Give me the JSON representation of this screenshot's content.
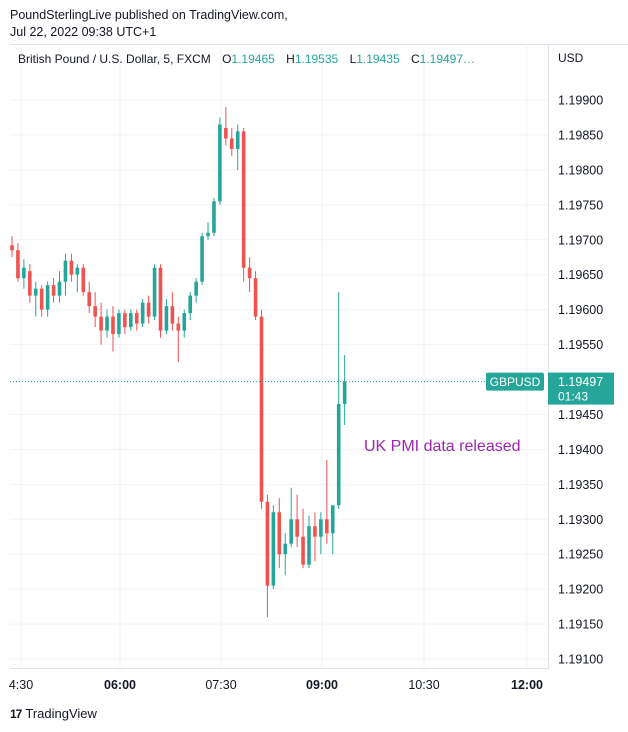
{
  "header": {
    "line1": "PoundSterlingLive published on TradingView.com,",
    "line2": "Jul 22, 2022 09:38 UTC+1"
  },
  "legend": {
    "symbol": "British Pound / U.S. Dollar, 5, FXCM",
    "o_label": "O",
    "o_value": "1.19465",
    "h_label": "H",
    "h_value": "1.19535",
    "l_label": "L",
    "l_value": "1.19435",
    "c_label": "C",
    "c_value": "1.19497…"
  },
  "currency": "USD",
  "footer": {
    "logo": "17",
    "brand": "TradingView"
  },
  "colors": {
    "up": "#26a69a",
    "down": "#ef5350",
    "annotation": "#9c27b0",
    "grid": "#f0f3fa"
  },
  "chart_data": {
    "type": "candlestick",
    "price_ticks": [
      "1.19900",
      "1.19850",
      "1.19800",
      "1.19750",
      "1.19700",
      "1.19650",
      "1.19600",
      "1.19550",
      "1.19500",
      "1.19450",
      "1.19400",
      "1.19350",
      "1.19300",
      "1.19250",
      "1.19200",
      "1.19150",
      "1.19100"
    ],
    "time_ticks": [
      {
        "label": "4:30",
        "bold": false
      },
      {
        "label": "06:00",
        "bold": true
      },
      {
        "label": "07:30",
        "bold": false
      },
      {
        "label": "09:00",
        "bold": true
      },
      {
        "label": "10:30",
        "bold": false
      },
      {
        "label": "12:00",
        "bold": true
      }
    ],
    "ylim": [
      1.19085,
      1.19945
    ],
    "last_price": {
      "symbol": "GBPUSD",
      "price": "1.19497",
      "countdown": "01:43",
      "value": 1.19497
    },
    "annotation": "UK PMI data released",
    "candles": [
      [
        1.19692,
        1.19705,
        1.19675,
        1.19685
      ],
      [
        1.19685,
        1.19695,
        1.1964,
        1.19645
      ],
      [
        1.19645,
        1.19672,
        1.1963,
        1.1966
      ],
      [
        1.19655,
        1.19665,
        1.1961,
        1.1962
      ],
      [
        1.1962,
        1.1964,
        1.1959,
        1.1963
      ],
      [
        1.1963,
        1.19635,
        1.1959,
        1.196
      ],
      [
        1.196,
        1.1964,
        1.1959,
        1.19635
      ],
      [
        1.19635,
        1.19645,
        1.1961,
        1.1962
      ],
      [
        1.1962,
        1.19655,
        1.1961,
        1.1964
      ],
      [
        1.1964,
        1.1968,
        1.1962,
        1.1967
      ],
      [
        1.1967,
        1.1968,
        1.1964,
        1.1965
      ],
      [
        1.1965,
        1.19665,
        1.19625,
        1.1966
      ],
      [
        1.1966,
        1.19665,
        1.1962,
        1.19625
      ],
      [
        1.19625,
        1.1964,
        1.19595,
        1.19605
      ],
      [
        1.19605,
        1.19625,
        1.19575,
        1.1959
      ],
      [
        1.1959,
        1.1961,
        1.1955,
        1.1957
      ],
      [
        1.1957,
        1.196,
        1.1956,
        1.1959
      ],
      [
        1.1959,
        1.19605,
        1.1954,
        1.19565
      ],
      [
        1.19565,
        1.196,
        1.1956,
        1.19595
      ],
      [
        1.19595,
        1.196,
        1.19565,
        1.19575
      ],
      [
        1.19575,
        1.196,
        1.1957,
        1.19595
      ],
      [
        1.19595,
        1.196,
        1.1957,
        1.1958
      ],
      [
        1.1958,
        1.19615,
        1.19575,
        1.1961
      ],
      [
        1.1961,
        1.1962,
        1.1958,
        1.1959
      ],
      [
        1.1959,
        1.19665,
        1.19585,
        1.1966
      ],
      [
        1.1966,
        1.19665,
        1.1956,
        1.1957
      ],
      [
        1.1957,
        1.19615,
        1.19565,
        1.19605
      ],
      [
        1.19605,
        1.19625,
        1.1957,
        1.1958
      ],
      [
        1.1958,
        1.1959,
        1.19525,
        1.1957
      ],
      [
        1.1957,
        1.196,
        1.1956,
        1.19595
      ],
      [
        1.19595,
        1.19625,
        1.19585,
        1.1962
      ],
      [
        1.1962,
        1.19645,
        1.1961,
        1.1964
      ],
      [
        1.1964,
        1.1971,
        1.19635,
        1.19705
      ],
      [
        1.19705,
        1.19725,
        1.197,
        1.1971
      ],
      [
        1.1971,
        1.1976,
        1.19705,
        1.19755
      ],
      [
        1.19755,
        1.19875,
        1.1975,
        1.19865
      ],
      [
        1.1986,
        1.1989,
        1.19835,
        1.19845
      ],
      [
        1.19845,
        1.1986,
        1.1982,
        1.1983
      ],
      [
        1.1983,
        1.19865,
        1.198,
        1.19855
      ],
      [
        1.19855,
        1.1986,
        1.1964,
        1.1966
      ],
      [
        1.1966,
        1.19675,
        1.19625,
        1.19645
      ],
      [
        1.19645,
        1.19655,
        1.19585,
        1.1959
      ],
      [
        1.1959,
        1.196,
        1.19315,
        1.19325
      ],
      [
        1.19325,
        1.19335,
        1.1916,
        1.19205
      ],
      [
        1.19205,
        1.1932,
        1.192,
        1.1931
      ],
      [
        1.1931,
        1.1933,
        1.1923,
        1.1925
      ],
      [
        1.1925,
        1.1928,
        1.1922,
        1.19265
      ],
      [
        1.19265,
        1.19345,
        1.1926,
        1.193
      ],
      [
        1.193,
        1.19335,
        1.1926,
        1.19275
      ],
      [
        1.19275,
        1.19315,
        1.1923,
        1.19235
      ],
      [
        1.19235,
        1.19305,
        1.1923,
        1.1929
      ],
      [
        1.1929,
        1.1931,
        1.1924,
        1.19275
      ],
      [
        1.19275,
        1.1931,
        1.1925,
        1.193
      ],
      [
        1.193,
        1.19385,
        1.19265,
        1.1928
      ],
      [
        1.1928,
        1.1932,
        1.1925,
        1.1932
      ],
      [
        1.1932,
        1.19625,
        1.19315,
        1.19465
      ],
      [
        1.19465,
        1.19535,
        1.19435,
        1.19497
      ]
    ]
  }
}
